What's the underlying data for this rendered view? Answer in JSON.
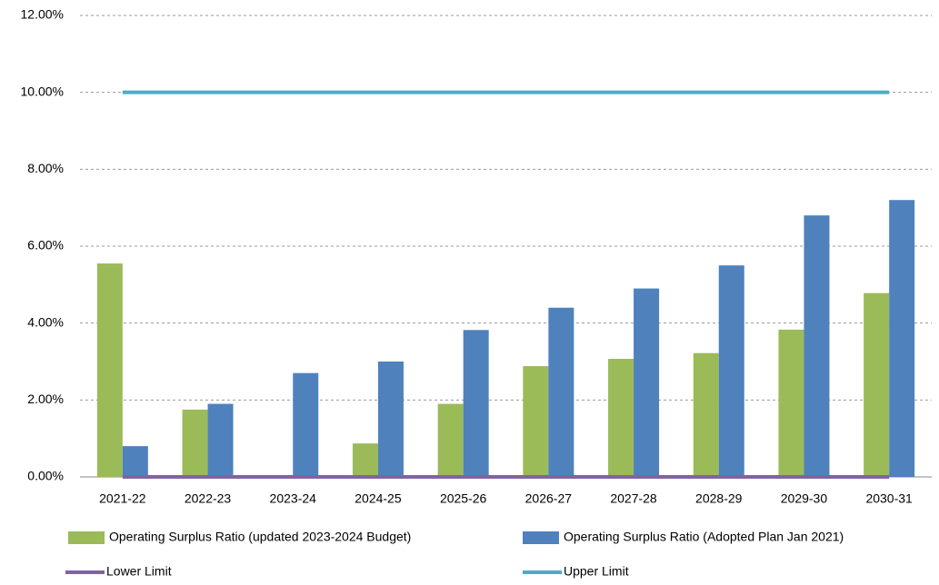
{
  "chart_data": {
    "type": "bar",
    "categories": [
      "2021-22",
      "2022-23",
      "2023-24",
      "2024-25",
      "2025-26",
      "2026-27",
      "2027-28",
      "2028-29",
      "2029-30",
      "2030-31"
    ],
    "series": [
      {
        "name": "Operating Surplus Ratio (updated 2023-2024 Budget)",
        "type": "bar",
        "color": "#9bbb59",
        "values": [
          5.55,
          1.75,
          0,
          0.87,
          1.9,
          2.88,
          3.07,
          3.22,
          3.83,
          4.78
        ]
      },
      {
        "name": "Operating Surplus Ratio (Adopted Plan Jan 2021)",
        "type": "bar",
        "color": "#4f81bd",
        "values": [
          0.8,
          1.9,
          2.7,
          3.0,
          3.82,
          4.4,
          4.9,
          5.5,
          6.8,
          7.2
        ]
      },
      {
        "name": "Lower Limit",
        "type": "line",
        "color": "#8064a2",
        "values": [
          0,
          0,
          0,
          0,
          0,
          0,
          0,
          0,
          0,
          0
        ]
      },
      {
        "name": "Upper Limit",
        "type": "line",
        "color": "#4bacc6",
        "values": [
          10,
          10,
          10,
          10,
          10,
          10,
          10,
          10,
          10,
          10
        ]
      }
    ],
    "ylim": [
      0,
      12
    ],
    "yticks": [
      {
        "value": 0,
        "label": "0.00%"
      },
      {
        "value": 2,
        "label": "2.00%"
      },
      {
        "value": 4,
        "label": "4.00%"
      },
      {
        "value": 6,
        "label": "6.00%"
      },
      {
        "value": 8,
        "label": "8.00%"
      },
      {
        "value": 10,
        "label": "10.00%"
      },
      {
        "value": 12,
        "label": "12.00%"
      }
    ],
    "grid": true,
    "legend": "bottom"
  }
}
